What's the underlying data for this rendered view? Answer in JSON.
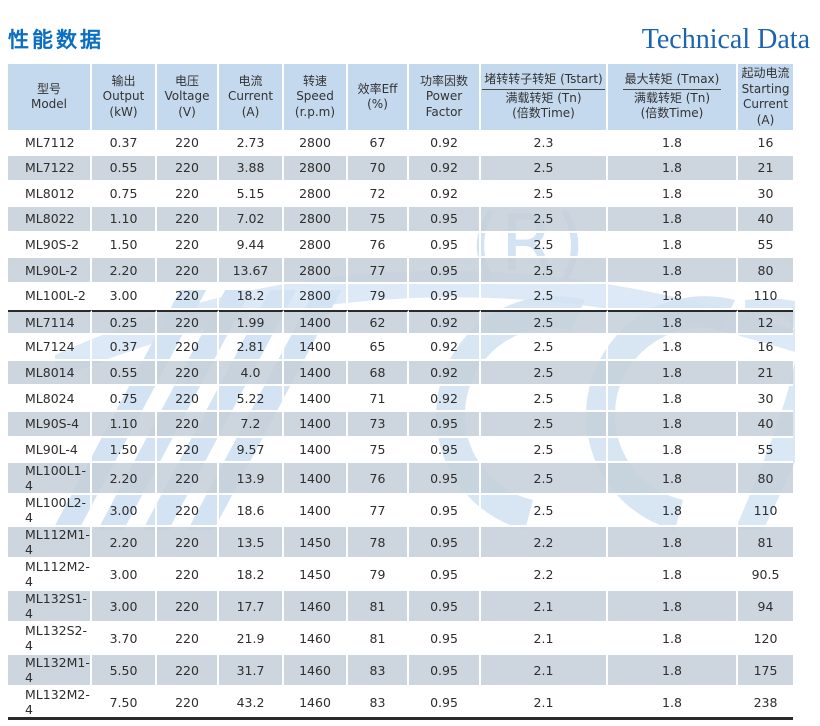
{
  "header": {
    "title_zh": "性能数据",
    "title_en": "Technical Data"
  },
  "watermark": {
    "registered_mark": "(R)",
    "color": "#cfe0f2"
  },
  "colors": {
    "accent_blue_zh": "#0b6fc1",
    "accent_blue_en": "#1b64b0",
    "header_bg": "#c5d9ee",
    "shaded_row": "#cdd6de",
    "separator_dark": "#2a2a2a"
  },
  "table": {
    "group_separator_index": 7,
    "columns": [
      {
        "id": "model",
        "lines": [
          "型号",
          "Model"
        ]
      },
      {
        "id": "output",
        "lines": [
          "输出",
          "Output",
          "(kW)"
        ]
      },
      {
        "id": "voltage",
        "lines": [
          "电压",
          "Voltage",
          "(V)"
        ]
      },
      {
        "id": "current",
        "lines": [
          "电流",
          "Current",
          "(A)"
        ]
      },
      {
        "id": "speed",
        "lines": [
          "转速",
          "Speed",
          "(r.p.m)"
        ]
      },
      {
        "id": "efficiency",
        "lines": [
          "效率Eff",
          "(%)"
        ]
      },
      {
        "id": "power-factor",
        "lines": [
          "功率因数",
          "Power",
          "Factor"
        ]
      },
      {
        "id": "tstart-ratio",
        "fraction": {
          "numerator": "堵转转子转矩 (Tstart)",
          "denominator": "满载转矩 (Tn)",
          "unit": "(倍数Time)"
        }
      },
      {
        "id": "tmax-ratio",
        "fraction": {
          "numerator": "最大转矩 (Tmax)",
          "denominator": "满载转矩 (Tn)",
          "unit": "(倍数Time)"
        }
      },
      {
        "id": "starting-current",
        "lines": [
          "起动电流",
          "Starting",
          "Current",
          "(A)"
        ]
      }
    ],
    "rows": [
      [
        "ML7112",
        "0.37",
        "220",
        "2.73",
        "2800",
        "67",
        "0.92",
        "2.3",
        "1.8",
        "16"
      ],
      [
        "ML7122",
        "0.55",
        "220",
        "3.88",
        "2800",
        "70",
        "0.92",
        "2.5",
        "1.8",
        "21"
      ],
      [
        "ML8012",
        "0.75",
        "220",
        "5.15",
        "2800",
        "72",
        "0.92",
        "2.5",
        "1.8",
        "30"
      ],
      [
        "ML8022",
        "1.10",
        "220",
        "7.02",
        "2800",
        "75",
        "0.95",
        "2.5",
        "1.8",
        "40"
      ],
      [
        "ML90S-2",
        "1.50",
        "220",
        "9.44",
        "2800",
        "76",
        "0.95",
        "2.5",
        "1.8",
        "55"
      ],
      [
        "ML90L-2",
        "2.20",
        "220",
        "13.67",
        "2800",
        "77",
        "0.95",
        "2.5",
        "1.8",
        "80"
      ],
      [
        "ML100L-2",
        "3.00",
        "220",
        "18.2",
        "2800",
        "79",
        "0.95",
        "2.5",
        "1.8",
        "110"
      ],
      [
        "ML7114",
        "0.25",
        "220",
        "1.99",
        "1400",
        "62",
        "0.92",
        "2.5",
        "1.8",
        "12"
      ],
      [
        "ML7124",
        "0.37",
        "220",
        "2.81",
        "1400",
        "65",
        "0.92",
        "2.5",
        "1.8",
        "16"
      ],
      [
        "ML8014",
        "0.55",
        "220",
        "4.0",
        "1400",
        "68",
        "0.92",
        "2.5",
        "1.8",
        "21"
      ],
      [
        "ML8024",
        "0.75",
        "220",
        "5.22",
        "1400",
        "71",
        "0.92",
        "2.5",
        "1.8",
        "30"
      ],
      [
        "ML90S-4",
        "1.10",
        "220",
        "7.2",
        "1400",
        "73",
        "0.95",
        "2.5",
        "1.8",
        "40"
      ],
      [
        "ML90L-4",
        "1.50",
        "220",
        "9.57",
        "1400",
        "75",
        "0.95",
        "2.5",
        "1.8",
        "55"
      ],
      [
        "ML100L1-4",
        "2.20",
        "220",
        "13.9",
        "1400",
        "76",
        "0.95",
        "2.5",
        "1.8",
        "80"
      ],
      [
        "ML100L2-4",
        "3.00",
        "220",
        "18.6",
        "1400",
        "77",
        "0.95",
        "2.5",
        "1.8",
        "110"
      ],
      [
        "ML112M1-4",
        "2.20",
        "220",
        "13.5",
        "1450",
        "78",
        "0.95",
        "2.2",
        "1.8",
        "81"
      ],
      [
        "ML112M2-4",
        "3.00",
        "220",
        "18.2",
        "1450",
        "79",
        "0.95",
        "2.2",
        "1.8",
        "90.5"
      ],
      [
        "ML132S1-4",
        "3.00",
        "220",
        "17.7",
        "1460",
        "81",
        "0.95",
        "2.1",
        "1.8",
        "94"
      ],
      [
        "ML132S2-4",
        "3.70",
        "220",
        "21.9",
        "1460",
        "81",
        "0.95",
        "2.1",
        "1.8",
        "120"
      ],
      [
        "ML132M1-4",
        "5.50",
        "220",
        "31.7",
        "1460",
        "83",
        "0.95",
        "2.1",
        "1.8",
        "175"
      ],
      [
        "ML132M2-4",
        "7.50",
        "220",
        "43.2",
        "1460",
        "83",
        "0.95",
        "2.1",
        "1.8",
        "238"
      ]
    ]
  }
}
